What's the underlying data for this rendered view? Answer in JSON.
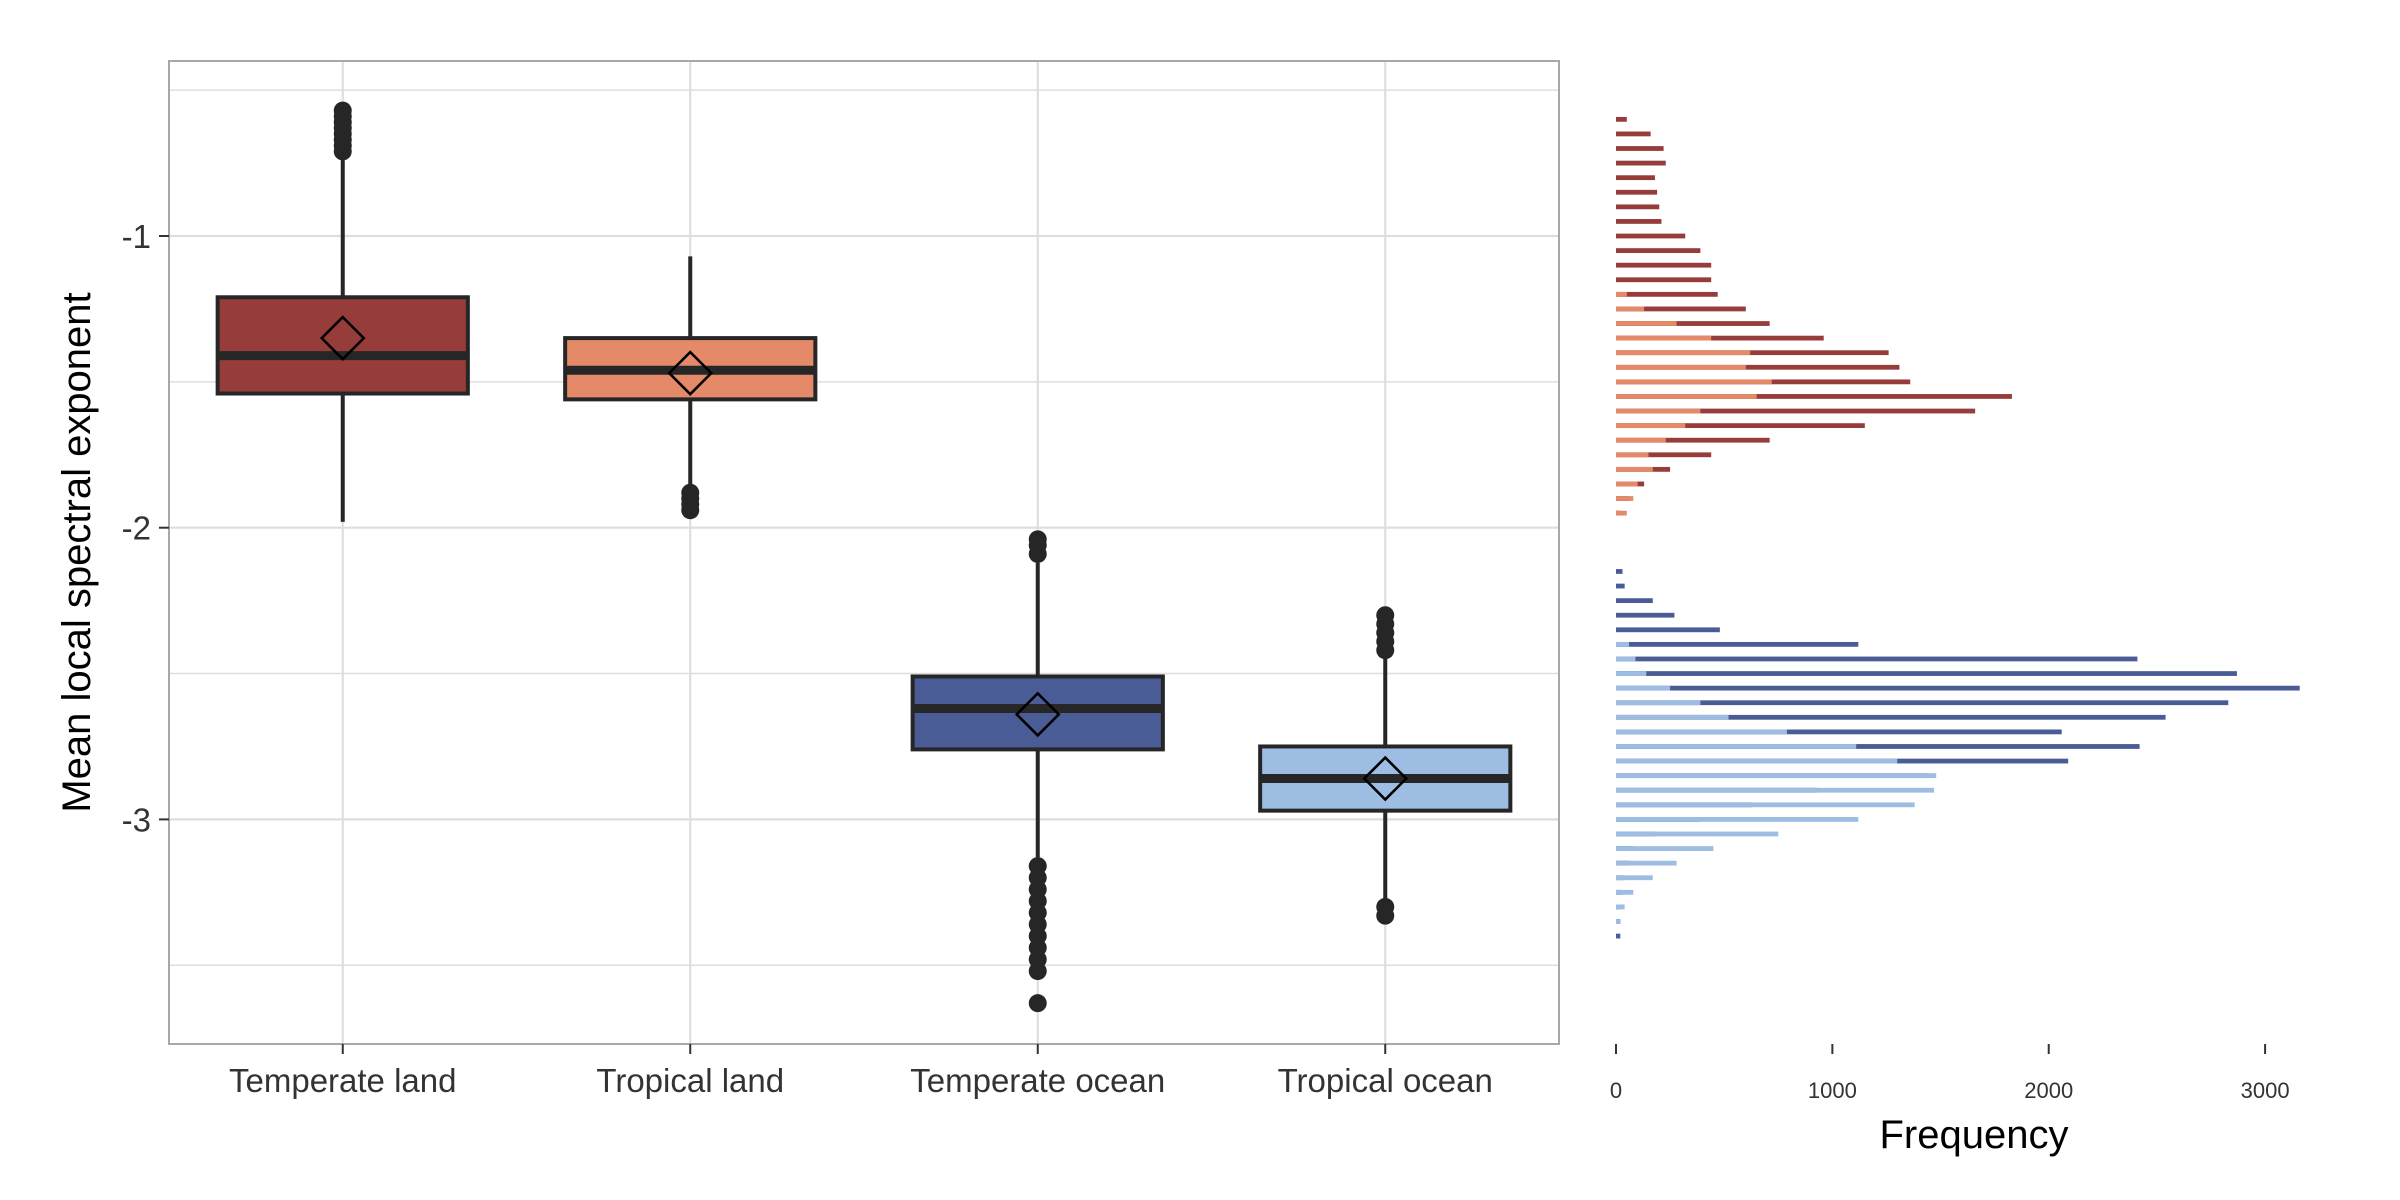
{
  "colors": {
    "temperate_land": "#963C3A",
    "tropical_land": "#E48A68",
    "temperate_ocean": "#4A5C96",
    "tropical_ocean": "#9DBDE3",
    "grid": "#DEDEDE",
    "panel_border": "#A8A8A8",
    "ink": "#262626",
    "text": "#333333"
  },
  "chart_data": [
    {
      "type": "box",
      "ylabel": "Mean local spectral exponent",
      "xlabel": "",
      "ylim": [
        -3.77,
        -0.4
      ],
      "yticks": [
        -1,
        -2,
        -3
      ],
      "ytick_labels": [
        "-1",
        "-2",
        "-3"
      ],
      "y_minor_grid": [
        -0.5,
        -1.5,
        -2.5,
        -3.5
      ],
      "categories": [
        "Temperate land",
        "Tropical land",
        "Temperate ocean",
        "Tropical ocean"
      ],
      "series": [
        {
          "name": "Temperate land",
          "color_key": "temperate_land",
          "q1": -1.54,
          "median": -1.41,
          "q3": -1.21,
          "mean": -1.35,
          "whisker_low": -1.98,
          "whisker_high": -0.73,
          "outliers": [
            -0.57,
            -0.59,
            -0.61,
            -0.63,
            -0.65,
            -0.67,
            -0.69,
            -0.71
          ]
        },
        {
          "name": "Tropical land",
          "color_key": "tropical_land",
          "q1": -1.56,
          "median": -1.46,
          "q3": -1.35,
          "mean": -1.47,
          "whisker_low": -1.86,
          "whisker_high": -1.07,
          "outliers": [
            -1.88,
            -1.9,
            -1.92,
            -1.94
          ]
        },
        {
          "name": "Temperate ocean",
          "color_key": "temperate_ocean",
          "q1": -2.76,
          "median": -2.62,
          "q3": -2.51,
          "mean": -2.64,
          "whisker_low": -3.13,
          "whisker_high": -2.12,
          "outliers": [
            -2.04,
            -2.06,
            -2.09,
            -3.16,
            -3.2,
            -3.24,
            -3.28,
            -3.32,
            -3.36,
            -3.4,
            -3.44,
            -3.48,
            -3.52,
            -3.63
          ]
        },
        {
          "name": "Tropical ocean",
          "color_key": "tropical_ocean",
          "q1": -2.97,
          "median": -2.86,
          "q3": -2.75,
          "mean": -2.86,
          "whisker_low": -3.28,
          "whisker_high": -2.44,
          "outliers": [
            -2.3,
            -2.33,
            -2.36,
            -2.39,
            -2.42,
            -3.3,
            -3.33
          ]
        }
      ]
    },
    {
      "type": "bar",
      "orientation": "horizontal",
      "xlabel": "Frequency",
      "ylabel": "",
      "xlim": [
        0,
        3300
      ],
      "ylim": [
        -3.77,
        -0.4
      ],
      "xticks": [
        0,
        1000,
        2000,
        3000
      ],
      "xtick_labels": [
        "0",
        "1000",
        "2000",
        "3000"
      ],
      "bin_width": 0.05,
      "series": [
        {
          "name": "Temperate land",
          "color_key": "temperate_land",
          "bins": [
            [
              -0.6,
              50
            ],
            [
              -0.65,
              160
            ],
            [
              -0.7,
              220
            ],
            [
              -0.75,
              230
            ],
            [
              -0.8,
              180
            ],
            [
              -0.85,
              190
            ],
            [
              -0.9,
              200
            ],
            [
              -0.95,
              210
            ],
            [
              -1.0,
              320
            ],
            [
              -1.05,
              390
            ],
            [
              -1.1,
              440
            ],
            [
              -1.15,
              440
            ],
            [
              -1.2,
              470
            ],
            [
              -1.25,
              600
            ],
            [
              -1.3,
              710
            ],
            [
              -1.35,
              960
            ],
            [
              -1.4,
              1260
            ],
            [
              -1.45,
              1310
            ],
            [
              -1.5,
              1360
            ],
            [
              -1.55,
              1830
            ],
            [
              -1.6,
              1660
            ],
            [
              -1.65,
              1150
            ],
            [
              -1.7,
              710
            ],
            [
              -1.75,
              440
            ],
            [
              -1.8,
              250
            ],
            [
              -1.85,
              130
            ],
            [
              -1.9,
              60
            ],
            [
              -1.95,
              20
            ]
          ]
        },
        {
          "name": "Tropical land",
          "color_key": "tropical_land",
          "bins": [
            [
              -1.2,
              50
            ],
            [
              -1.25,
              130
            ],
            [
              -1.3,
              280
            ],
            [
              -1.35,
              440
            ],
            [
              -1.4,
              620
            ],
            [
              -1.45,
              600
            ],
            [
              -1.5,
              720
            ],
            [
              -1.55,
              650
            ],
            [
              -1.6,
              390
            ],
            [
              -1.65,
              320
            ],
            [
              -1.7,
              230
            ],
            [
              -1.75,
              150
            ],
            [
              -1.8,
              170
            ],
            [
              -1.85,
              100
            ],
            [
              -1.9,
              80
            ],
            [
              -1.95,
              50
            ]
          ]
        },
        {
          "name": "Temperate ocean",
          "color_key": "temperate_ocean",
          "bins": [
            [
              -2.15,
              30
            ],
            [
              -2.2,
              40
            ],
            [
              -2.25,
              170
            ],
            [
              -2.3,
              270
            ],
            [
              -2.35,
              480
            ],
            [
              -2.4,
              1120
            ],
            [
              -2.45,
              2410
            ],
            [
              -2.5,
              2870
            ],
            [
              -2.55,
              3160
            ],
            [
              -2.6,
              2830
            ],
            [
              -2.65,
              2540
            ],
            [
              -2.7,
              2060
            ],
            [
              -2.75,
              2420
            ],
            [
              -2.8,
              2090
            ],
            [
              -2.85,
              1440
            ],
            [
              -2.9,
              930
            ],
            [
              -2.95,
              630
            ],
            [
              -3.0,
              390
            ],
            [
              -3.05,
              180
            ],
            [
              -3.1,
              80
            ],
            [
              -3.15,
              60
            ],
            [
              -3.2,
              40
            ],
            [
              -3.25,
              30
            ],
            [
              -3.3,
              20
            ],
            [
              -3.35,
              20
            ],
            [
              -3.4,
              20
            ]
          ]
        },
        {
          "name": "Tropical ocean",
          "color_key": "tropical_ocean",
          "bins": [
            [
              -2.4,
              60
            ],
            [
              -2.45,
              90
            ],
            [
              -2.5,
              140
            ],
            [
              -2.55,
              250
            ],
            [
              -2.6,
              390
            ],
            [
              -2.65,
              520
            ],
            [
              -2.7,
              790
            ],
            [
              -2.75,
              1110
            ],
            [
              -2.8,
              1300
            ],
            [
              -2.85,
              1480
            ],
            [
              -2.9,
              1470
            ],
            [
              -2.95,
              1380
            ],
            [
              -3.0,
              1120
            ],
            [
              -3.05,
              750
            ],
            [
              -3.1,
              450
            ],
            [
              -3.15,
              280
            ],
            [
              -3.2,
              170
            ],
            [
              -3.25,
              80
            ],
            [
              -3.3,
              40
            ],
            [
              -3.35,
              20
            ]
          ]
        }
      ]
    }
  ]
}
